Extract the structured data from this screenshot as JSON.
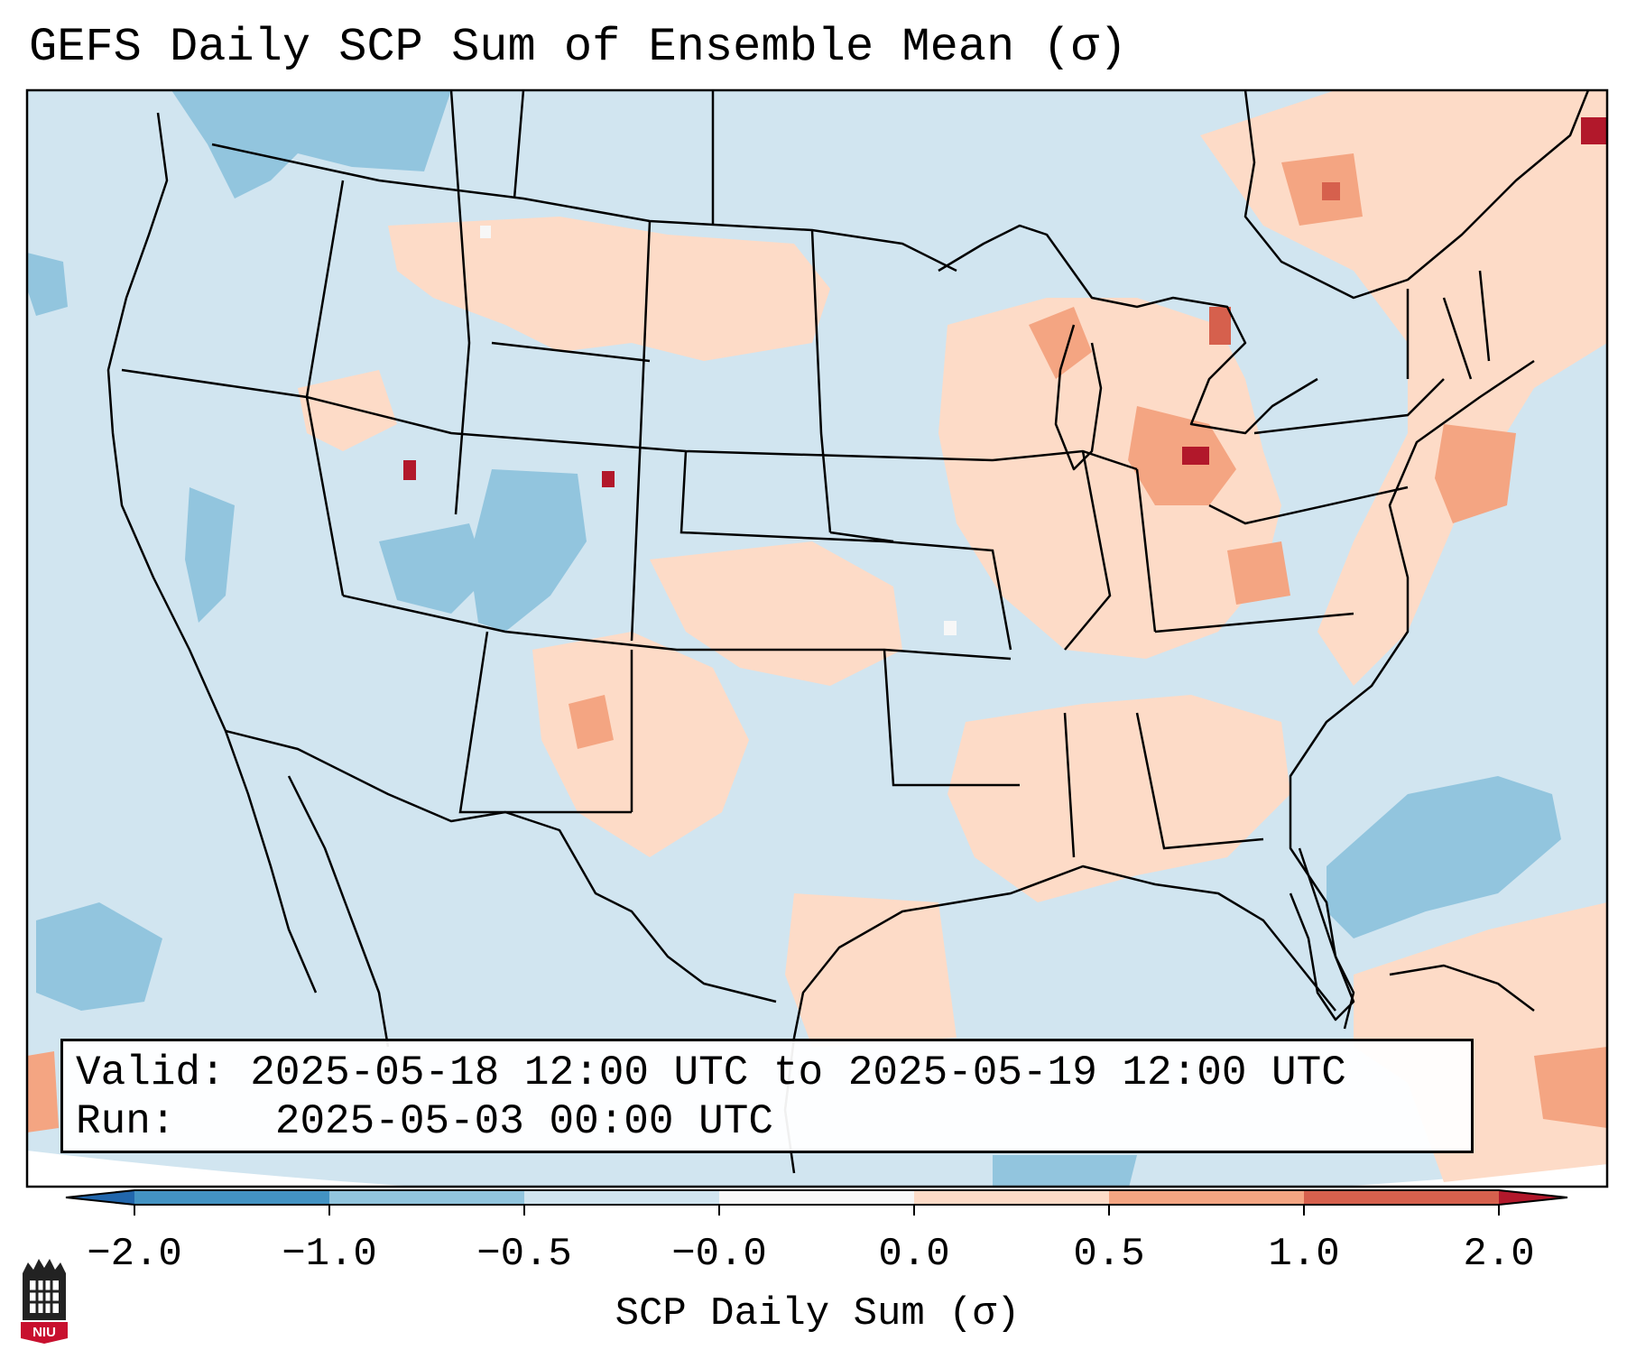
{
  "title": "GEFS Daily SCP Sum of Ensemble Mean (σ)",
  "info": {
    "valid_label": "Valid:",
    "valid_text": "2025-05-18 12:00 UTC to 2025-05-19 12:00 UTC",
    "run_label": "Run:",
    "run_text": "2025-05-03 00:00 UTC"
  },
  "colorbar": {
    "label": "SCP Daily Sum (σ)",
    "ticks": [
      "−2.0",
      "−1.0",
      "−0.5",
      "−0.0",
      "0.0",
      "0.5",
      "1.0",
      "2.0"
    ],
    "bin_colors": [
      "#4393c3",
      "#92c5de",
      "#d1e5f0",
      "#f7f7f7",
      "#fddbc7",
      "#f4a582",
      "#d6604d"
    ],
    "under_color": "#2166ac",
    "over_color": "#b2182b"
  },
  "map": {
    "projection": "Lambert conformal, CONUS",
    "background_color": "#d1e5f0",
    "anomaly_colors": {
      "light_blue": "#92c5de",
      "light_orange": "#fddbc7",
      "orange": "#f4a582",
      "red": "#d6604d",
      "dark_red": "#b2182b",
      "white": "#f7f7f7"
    }
  },
  "logo": {
    "text": "NIU",
    "icon": "niu-logo-icon",
    "color": "#c8102e"
  }
}
